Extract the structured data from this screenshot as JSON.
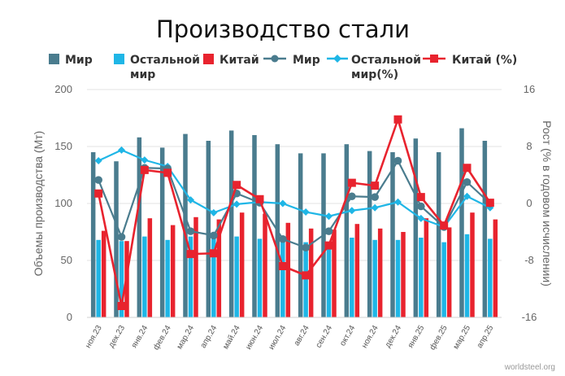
{
  "colors": {
    "world": "#4a7c8e",
    "rest": "#1fb6e6",
    "china": "#e8232e",
    "grid": "#e3e3e3"
  },
  "legend": {
    "world_bar": "Мир",
    "rest_bar_line1": "Остальной",
    "rest_bar_line2": "мир",
    "china_bar": "Китай",
    "world_growth": "Мир",
    "rest_growth_line1": "Остальной",
    "rest_growth_line2": "мир(%)",
    "china_growth": "Китай (%)"
  },
  "source": "worldsteel.org",
  "chart_data": {
    "type": "bar",
    "title": "Производство стали",
    "ylabel": "Объемы производства (Мт)",
    "y2label": "Рост (% в годовом исчислении)",
    "ylim": [
      0,
      200
    ],
    "y2lim": [
      -16,
      16
    ],
    "yticks": [
      0,
      50,
      100,
      150,
      200
    ],
    "y2ticks": [
      -16,
      -8,
      0,
      8,
      16
    ],
    "y2ticklabels": [
      "-16",
      "-8",
      "0",
      "8",
      "16"
    ],
    "grid": true,
    "legend_position": "top",
    "categories": [
      "ноя.23",
      "дек.23",
      "янв.24",
      "фев.24",
      "мар.24",
      "апр.24",
      "май.24",
      "июн.24",
      "июл.24",
      "авг.24",
      "сен.24",
      "окт.24",
      "ноя.24",
      "дек.24",
      "янв.25",
      "фев.25",
      "мар.25",
      "апр.25"
    ],
    "series": [
      {
        "name": "Мир",
        "kind": "bar",
        "axis": "left",
        "color": "#4a7c8e",
        "values": [
          145,
          137,
          158,
          149,
          161,
          155,
          164,
          160,
          152,
          144,
          144,
          152,
          146,
          145,
          157,
          145,
          166,
          155
        ]
      },
      {
        "name": "Остальной мир",
        "kind": "bar",
        "axis": "left",
        "color": "#1fb6e6",
        "values": [
          68,
          67,
          71,
          68,
          71,
          70,
          71,
          69,
          68,
          66,
          66,
          70,
          68,
          68,
          70,
          66,
          73,
          69
        ]
      },
      {
        "name": "Китай",
        "kind": "bar",
        "axis": "left",
        "color": "#e8232e",
        "values": [
          76,
          67,
          87,
          81,
          88,
          86,
          92,
          91,
          83,
          78,
          77,
          82,
          78,
          75,
          87,
          79,
          92,
          86
        ]
      },
      {
        "name": "Мир",
        "kind": "line",
        "axis": "right",
        "color": "#4a7c8e",
        "values": [
          3.3,
          -4.7,
          5.0,
          4.9,
          -3.9,
          -4.5,
          1.4,
          0.1,
          -5.0,
          -6.2,
          -3.9,
          1.0,
          0.9,
          6.0,
          -0.4,
          -3.3,
          3.0,
          0.0
        ]
      },
      {
        "name": "Остальной мир(%)",
        "kind": "line",
        "axis": "right",
        "color": "#1fb6e6",
        "values": [
          6.0,
          7.5,
          6.1,
          5.2,
          0.5,
          -1.3,
          -0.1,
          0.2,
          0.0,
          -1.2,
          -1.8,
          -1.0,
          -0.6,
          0.2,
          -2.1,
          -3.3,
          1.0,
          -0.6
        ]
      },
      {
        "name": "Китай (%)",
        "kind": "line",
        "axis": "right",
        "color": "#e8232e",
        "values": [
          1.4,
          -14.4,
          4.7,
          4.3,
          -7.1,
          -7.0,
          2.6,
          0.6,
          -8.8,
          -10.1,
          -5.9,
          2.9,
          2.5,
          11.8,
          0.9,
          -3.1,
          5.0,
          0.1
        ]
      }
    ]
  }
}
